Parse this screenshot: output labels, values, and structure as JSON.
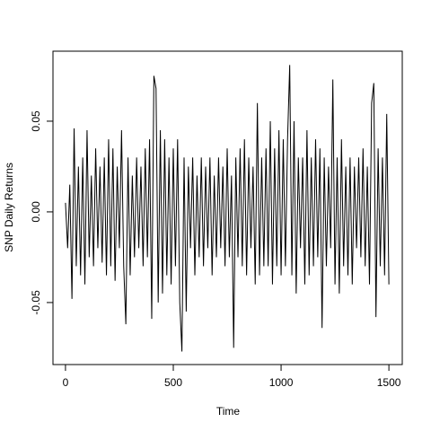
{
  "chart_data": {
    "type": "line",
    "xlabel": "Time",
    "ylabel": "SNP Daily Returns",
    "color": "#000000",
    "xlim": [
      -58,
      1562
    ],
    "ylim": [
      -0.0842,
      0.0886
    ],
    "xticks": [
      0,
      500,
      1000,
      1500
    ],
    "yticks": [
      -0.05,
      {
        "value": 0,
        "label": "0.00"
      },
      0.05
    ],
    "x": [
      0,
      10,
      20,
      30,
      40,
      50,
      60,
      70,
      80,
      90,
      100,
      110,
      120,
      130,
      140,
      150,
      160,
      170,
      180,
      190,
      200,
      210,
      220,
      230,
      240,
      250,
      260,
      270,
      280,
      290,
      300,
      310,
      320,
      330,
      340,
      350,
      360,
      370,
      380,
      390,
      400,
      410,
      420,
      430,
      440,
      450,
      460,
      470,
      480,
      490,
      500,
      510,
      520,
      530,
      540,
      550,
      560,
      570,
      580,
      590,
      600,
      610,
      620,
      630,
      640,
      650,
      660,
      670,
      680,
      690,
      700,
      710,
      720,
      730,
      740,
      750,
      760,
      770,
      780,
      790,
      800,
      810,
      820,
      830,
      840,
      850,
      860,
      870,
      880,
      890,
      900,
      910,
      920,
      930,
      940,
      950,
      960,
      970,
      980,
      990,
      1000,
      1010,
      1020,
      1030,
      1040,
      1050,
      1060,
      1070,
      1080,
      1090,
      1100,
      1110,
      1120,
      1130,
      1140,
      1150,
      1160,
      1170,
      1180,
      1190,
      1200,
      1210,
      1220,
      1230,
      1240,
      1250,
      1260,
      1270,
      1280,
      1290,
      1300,
      1310,
      1320,
      1330,
      1340,
      1350,
      1360,
      1370,
      1380,
      1390,
      1400,
      1410,
      1420,
      1430,
      1440,
      1450,
      1460,
      1470,
      1480,
      1490,
      1500
    ],
    "values": [
      0.005,
      -0.02,
      0.015,
      -0.048,
      0.046,
      -0.03,
      0.025,
      -0.035,
      0.03,
      -0.04,
      0.045,
      -0.025,
      0.02,
      -0.03,
      0.035,
      -0.02,
      0.025,
      -0.028,
      0.03,
      -0.035,
      0.04,
      -0.03,
      0.035,
      -0.038,
      0.025,
      -0.02,
      0.045,
      -0.03,
      -0.062,
      0.03,
      -0.035,
      0.02,
      -0.025,
      0.03,
      -0.02,
      0.025,
      -0.03,
      0.035,
      -0.025,
      0.04,
      -0.059,
      0.075,
      0.068,
      -0.05,
      0.045,
      -0.045,
      0.04,
      -0.035,
      0.03,
      -0.04,
      0.035,
      -0.03,
      0.04,
      -0.05,
      -0.077,
      0.03,
      -0.055,
      0.025,
      -0.02,
      0.03,
      -0.035,
      0.02,
      -0.025,
      0.03,
      -0.03,
      0.025,
      -0.02,
      0.03,
      -0.035,
      0.02,
      -0.025,
      0.03,
      -0.02,
      0.025,
      -0.03,
      0.035,
      -0.025,
      0.02,
      -0.075,
      0.03,
      -0.025,
      0.035,
      -0.03,
      0.04,
      -0.035,
      0.03,
      -0.02,
      0.025,
      -0.04,
      0.06,
      -0.035,
      0.03,
      -0.03,
      0.035,
      -0.03,
      0.05,
      -0.04,
      0.035,
      -0.03,
      0.045,
      -0.035,
      0.04,
      -0.03,
      0.04,
      0.081,
      -0.035,
      0.05,
      -0.045,
      0.03,
      -0.02,
      0.03,
      -0.04,
      0.045,
      -0.035,
      0.03,
      -0.03,
      0.04,
      -0.025,
      0.035,
      -0.064,
      0.03,
      -0.03,
      0.025,
      -0.02,
      0.073,
      -0.04,
      0.03,
      -0.045,
      0.04,
      -0.03,
      0.025,
      -0.035,
      0.03,
      -0.04,
      0.025,
      -0.02,
      0.03,
      -0.025,
      0.035,
      -0.03,
      0.025,
      -0.04,
      0.06,
      0.071,
      -0.058,
      0.035,
      -0.03,
      0.03,
      -0.035,
      0.054,
      -0.04
    ]
  }
}
